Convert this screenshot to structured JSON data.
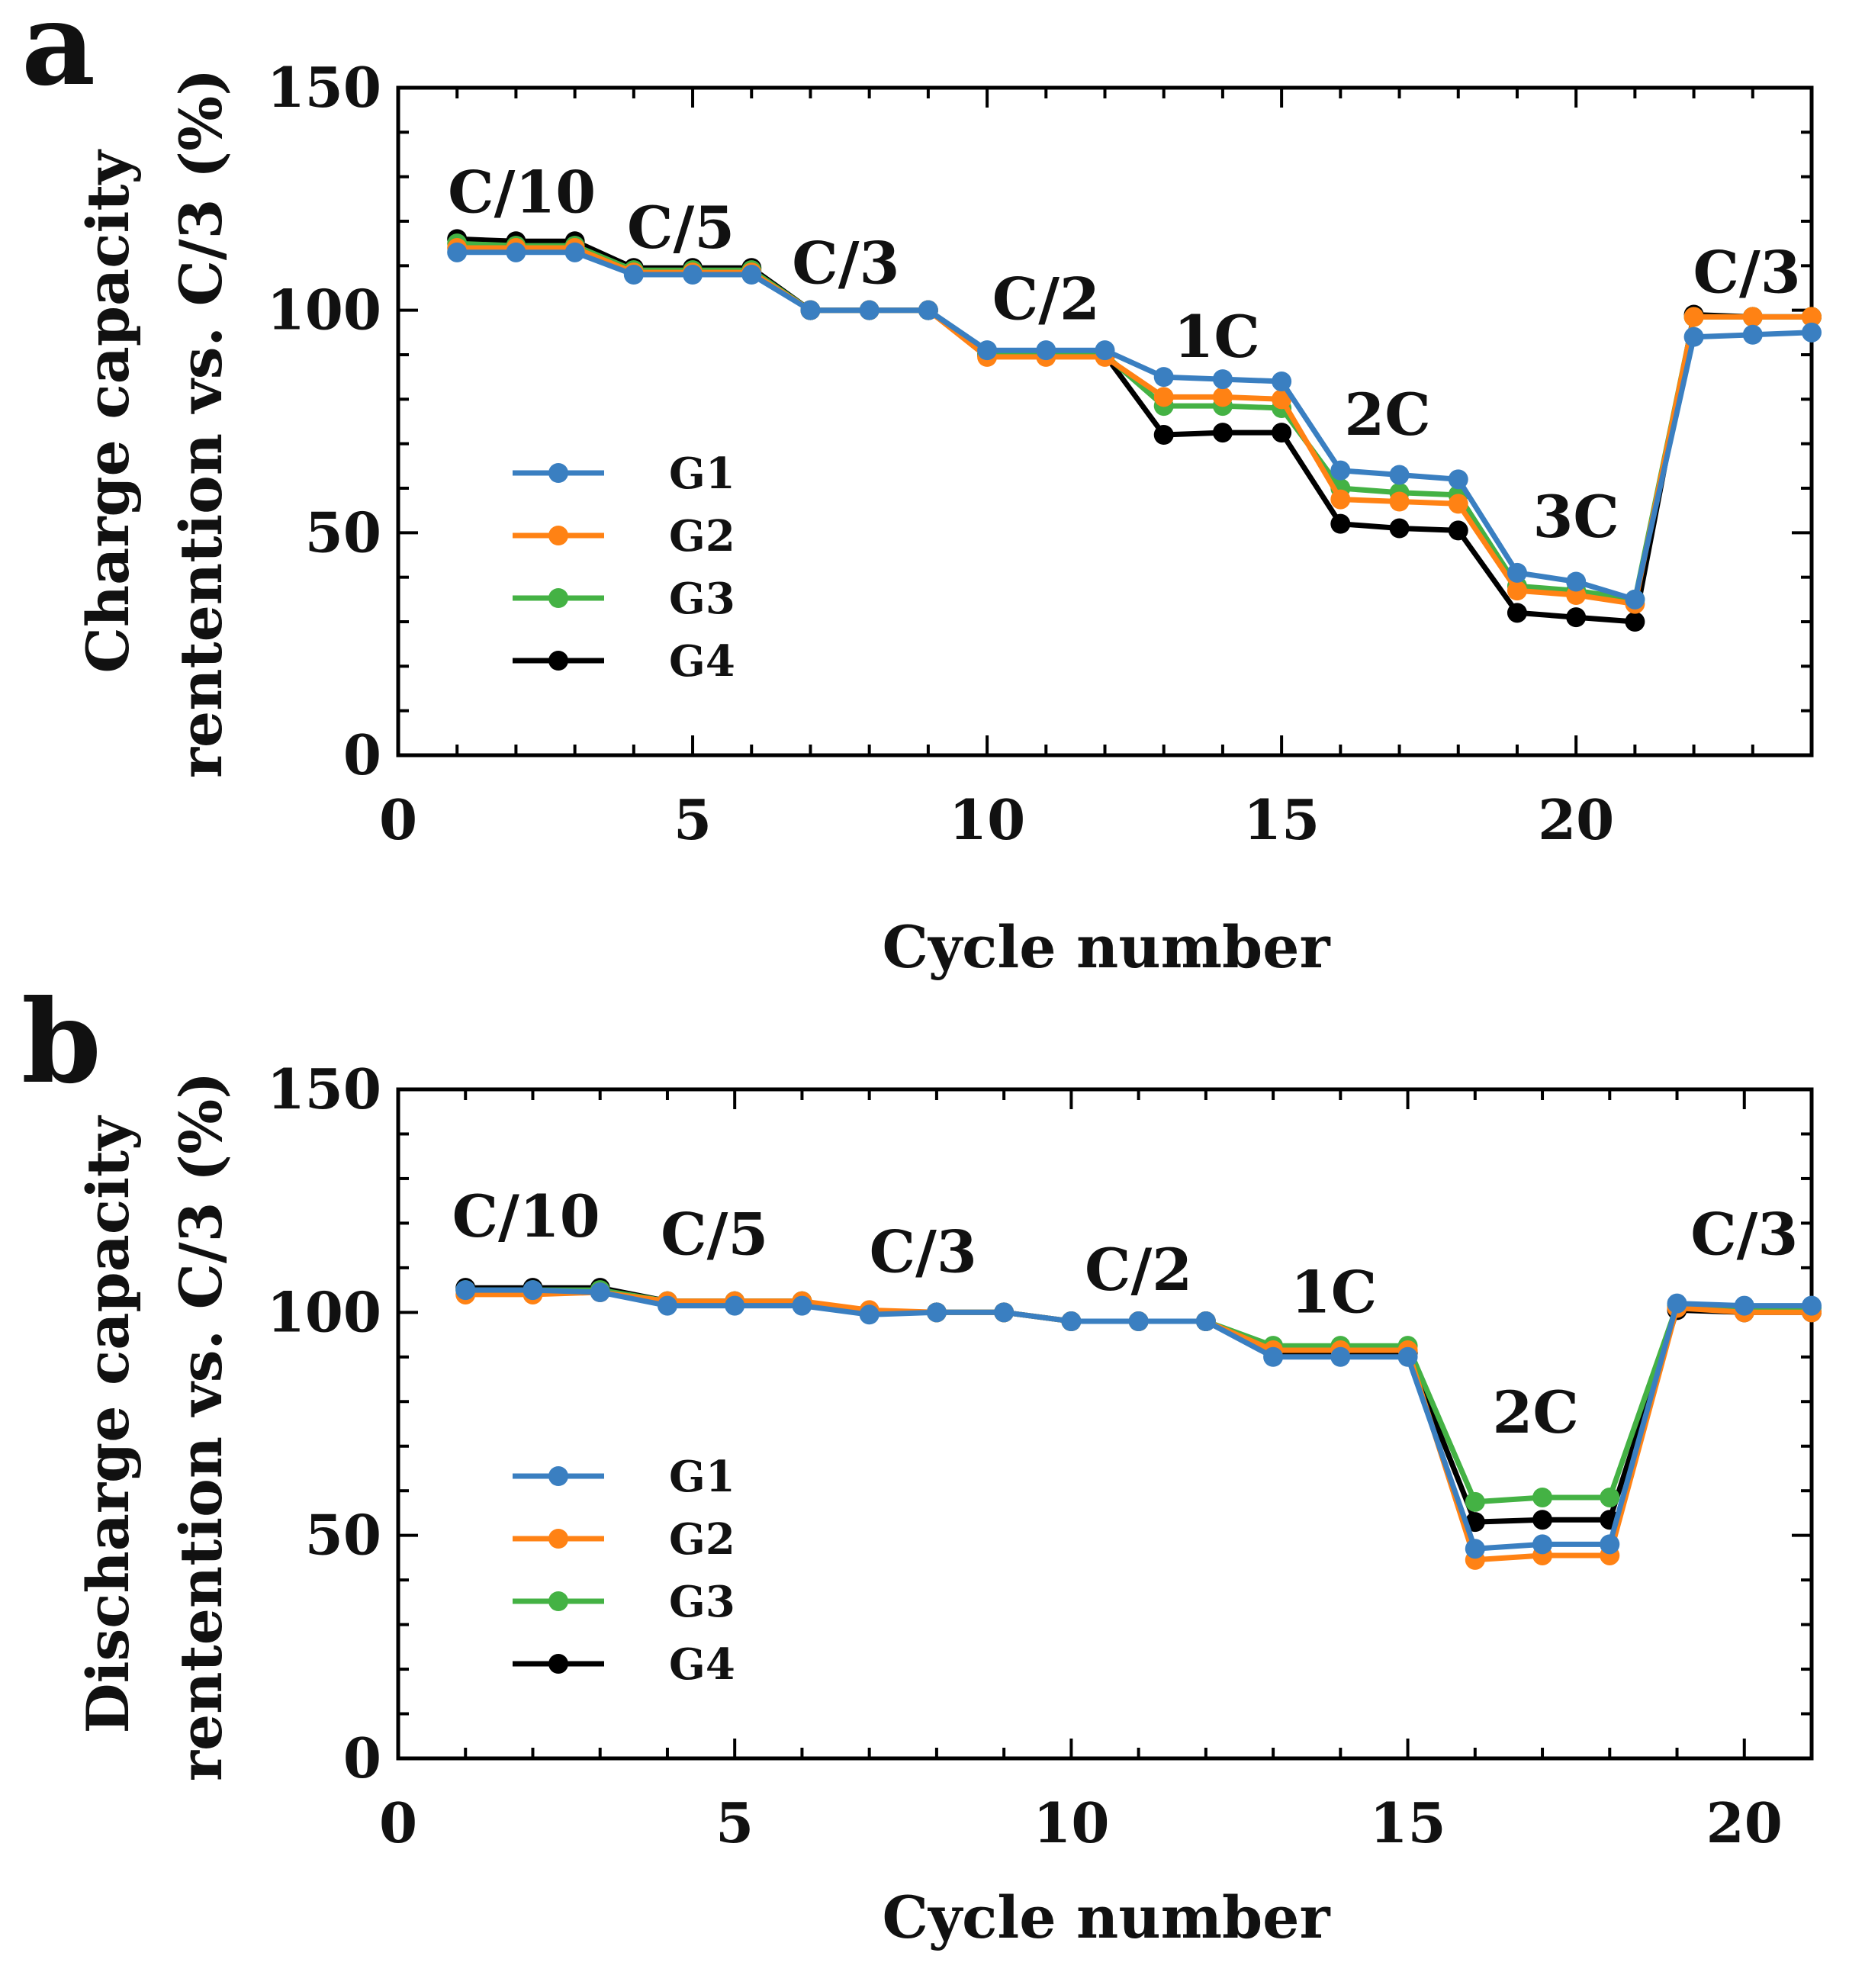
{
  "chart_data": [
    {
      "type": "line",
      "panel_label": "a",
      "xlabel": "Cycle number",
      "ylabel_lines": [
        "Charge capacity",
        "rentention vs. C/3 (%)"
      ],
      "xlim": [
        0,
        24
      ],
      "ylim": [
        0,
        150
      ],
      "xticks": [
        0,
        5,
        10,
        15,
        20
      ],
      "yticks": [
        0,
        50,
        100,
        150
      ],
      "x": [
        1,
        2,
        3,
        4,
        5,
        6,
        7,
        8,
        9,
        10,
        11,
        12,
        13,
        14,
        15,
        16,
        17,
        18,
        19,
        20,
        21,
        22,
        23,
        24
      ],
      "series": [
        {
          "name": "G1",
          "color": "#3a7fc1",
          "values": [
            113,
            113,
            113,
            108,
            108,
            108,
            100,
            100,
            100,
            91,
            91,
            91,
            85,
            84.5,
            84,
            64,
            63,
            62,
            41,
            39,
            35,
            94,
            94.5,
            95
          ]
        },
        {
          "name": "G2",
          "color": "#ff8214",
          "values": [
            114,
            114,
            114,
            108.5,
            108.5,
            108.5,
            100,
            100,
            100,
            89.5,
            89.5,
            89.5,
            80.5,
            80.5,
            80,
            57.5,
            57,
            56.5,
            37,
            36,
            34,
            98.5,
            98.5,
            98.5
          ]
        },
        {
          "name": "G3",
          "color": "#44b244",
          "values": [
            115,
            114.5,
            114.5,
            109,
            109,
            109,
            100,
            100,
            100,
            90,
            90,
            90,
            78.5,
            78.5,
            78,
            60,
            59,
            58.5,
            38,
            37,
            35,
            98.5,
            98.5,
            98.5
          ]
        },
        {
          "name": "G4",
          "color": "#000000",
          "values": [
            116,
            115.5,
            115.5,
            109.5,
            109.5,
            109.5,
            100,
            100,
            100,
            90,
            90,
            90,
            72,
            72.5,
            72.5,
            52,
            51,
            50.5,
            32,
            31,
            30,
            99,
            98.5,
            98.5
          ]
        }
      ],
      "annotations": [
        {
          "text": "C/10",
          "x": 2.1,
          "y": 122
        },
        {
          "text": "C/5",
          "x": 4.8,
          "y": 114
        },
        {
          "text": "C/3",
          "x": 7.6,
          "y": 106
        },
        {
          "text": "C/2",
          "x": 11.0,
          "y": 98
        },
        {
          "text": "1C",
          "x": 13.9,
          "y": 89.5
        },
        {
          "text": "2C",
          "x": 16.8,
          "y": 72
        },
        {
          "text": "3C",
          "x": 20.0,
          "y": 49
        },
        {
          "text": "C/3",
          "x": 22.9,
          "y": 104
        }
      ],
      "legend": {
        "position": "center-left",
        "entries": [
          "G1",
          "G2",
          "G3",
          "G4"
        ]
      }
    },
    {
      "type": "line",
      "panel_label": "b",
      "xlabel": "Cycle number",
      "ylabel_lines": [
        "Discharge capacity",
        "rentention vs. C/3 (%)"
      ],
      "xlim": [
        0,
        21
      ],
      "ylim": [
        0,
        150
      ],
      "xticks": [
        0,
        5,
        10,
        15,
        20
      ],
      "yticks": [
        0,
        50,
        100,
        150
      ],
      "x": [
        1,
        2,
        3,
        4,
        5,
        6,
        7,
        8,
        9,
        10,
        11,
        12,
        13,
        14,
        15,
        16,
        17,
        18,
        19,
        20,
        21
      ],
      "series": [
        {
          "name": "G1",
          "color": "#3a7fc1",
          "values": [
            105,
            105,
            104.5,
            101.5,
            101.5,
            101.5,
            99.5,
            100,
            100,
            98,
            98,
            98,
            90,
            90,
            90,
            47,
            48,
            48,
            102,
            101.5,
            101.5
          ]
        },
        {
          "name": "G2",
          "color": "#ff8214",
          "values": [
            104,
            104,
            104.5,
            102.5,
            102.5,
            102.5,
            100.5,
            100,
            100,
            98,
            98,
            98,
            91.5,
            91.5,
            91.5,
            44.5,
            45.5,
            45.5,
            101,
            100,
            100
          ]
        },
        {
          "name": "G3",
          "color": "#44b244",
          "values": [
            105,
            105,
            105,
            102.5,
            102.5,
            102.5,
            100,
            100,
            100,
            98,
            98,
            98,
            92.5,
            92.5,
            92.5,
            57.5,
            58.5,
            58.5,
            101.5,
            101,
            101
          ]
        },
        {
          "name": "G4",
          "color": "#000000",
          "values": [
            105.5,
            105.5,
            105.5,
            102.5,
            102.5,
            102.5,
            100,
            100,
            100,
            98,
            98,
            98,
            91,
            91,
            91,
            53,
            53.5,
            53.5,
            100.5,
            100,
            100
          ]
        }
      ],
      "annotations": [
        {
          "text": "C/10",
          "x": 1.9,
          "y": 117
        },
        {
          "text": "C/5",
          "x": 4.7,
          "y": 113
        },
        {
          "text": "C/3",
          "x": 7.8,
          "y": 109
        },
        {
          "text": "C/2",
          "x": 11.0,
          "y": 105
        },
        {
          "text": "1C",
          "x": 13.9,
          "y": 100
        },
        {
          "text": "2C",
          "x": 16.9,
          "y": 73
        },
        {
          "text": "C/3",
          "x": 20.0,
          "y": 113
        }
      ],
      "legend": {
        "position": "center-left",
        "entries": [
          "G1",
          "G2",
          "G3",
          "G4"
        ]
      }
    }
  ]
}
